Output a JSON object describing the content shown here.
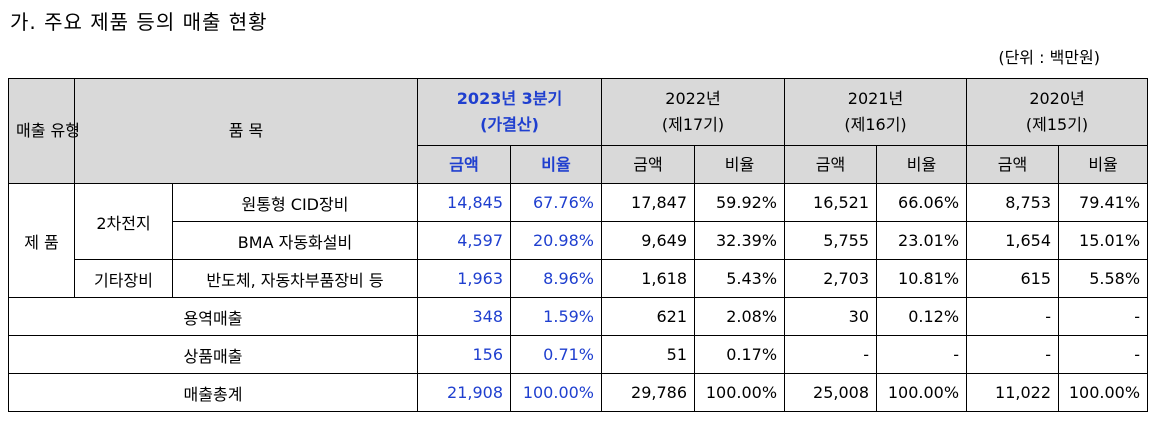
{
  "title": "가. 주요 제품 등의 매출 현황",
  "unit": "(단위 : 백만원)",
  "header": {
    "type_col": "매출 유형",
    "item_col": "품 목",
    "periods": [
      {
        "year": "2023년 3분기",
        "note": "(가결산)"
      },
      {
        "year": "2022년",
        "note": "(제17기)"
      },
      {
        "year": "2021년",
        "note": "(제16기)"
      },
      {
        "year": "2020년",
        "note": "(제15기)"
      }
    ],
    "amount": "금액",
    "ratio": "비율"
  },
  "groups": {
    "product": "제 품",
    "battery": "2차전지",
    "other": "기타장비"
  },
  "rows": [
    {
      "item": "원통형 CID장비",
      "values": [
        "14,845",
        "67.76%",
        "17,847",
        "59.92%",
        "16,521",
        "66.06%",
        "8,753",
        "79.41%"
      ]
    },
    {
      "item": "BMA 자동화설비",
      "values": [
        "4,597",
        "20.98%",
        "9,649",
        "32.39%",
        "5,755",
        "23.01%",
        "1,654",
        "15.01%"
      ]
    },
    {
      "item": "반도체, 자동차부품장비 등",
      "values": [
        "1,963",
        "8.96%",
        "1,618",
        "5.43%",
        "2,703",
        "10.81%",
        "615",
        "5.58%"
      ]
    },
    {
      "item": "용역매출",
      "values": [
        "348",
        "1.59%",
        "621",
        "2.08%",
        "30",
        "0.12%",
        "-",
        "-"
      ]
    },
    {
      "item": "상품매출",
      "values": [
        "156",
        "0.71%",
        "51",
        "0.17%",
        "-",
        "-",
        "-",
        "-"
      ]
    },
    {
      "item": "매출총계",
      "values": [
        "21,908",
        "100.00%",
        "29,786",
        "100.00%",
        "25,008",
        "100.00%",
        "11,022",
        "100.00%"
      ]
    }
  ]
}
